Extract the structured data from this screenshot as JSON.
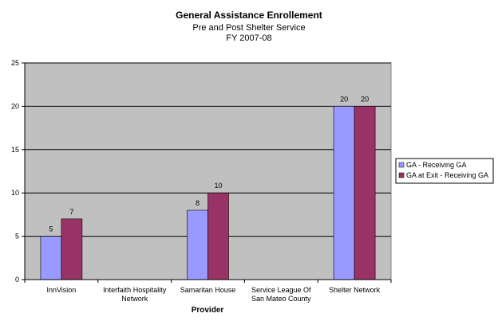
{
  "chart_data": {
    "type": "bar",
    "title": "General Assistance Enrollement",
    "subtitle_lines": [
      "Pre and Post Shelter Service",
      "FY 2007-08"
    ],
    "xlabel": "Provider",
    "ylabel": "",
    "ylim": [
      0,
      25
    ],
    "yticks": [
      "0",
      "5",
      "10",
      "15",
      "20",
      "25"
    ],
    "grid": true,
    "legend_position": "right",
    "categories": [
      [
        "InnVision"
      ],
      [
        "Interfaith Hospitality",
        "Network"
      ],
      [
        "Samaritan House"
      ],
      [
        "Service League Of",
        "San Mateo County"
      ],
      [
        "Shelter Network"
      ]
    ],
    "series": [
      {
        "name": "GA - Receiving GA",
        "color": "#9999ff",
        "values": [
          5,
          0,
          8,
          0,
          20
        ],
        "labels": [
          "5",
          "",
          "8",
          "",
          "20"
        ]
      },
      {
        "name": "GA at Exit - Receiving GA",
        "color": "#993366",
        "values": [
          7,
          0,
          10,
          0,
          20
        ],
        "labels": [
          "7",
          "",
          "10",
          "",
          "20"
        ]
      }
    ],
    "plot_background": "#c0c0c0"
  }
}
